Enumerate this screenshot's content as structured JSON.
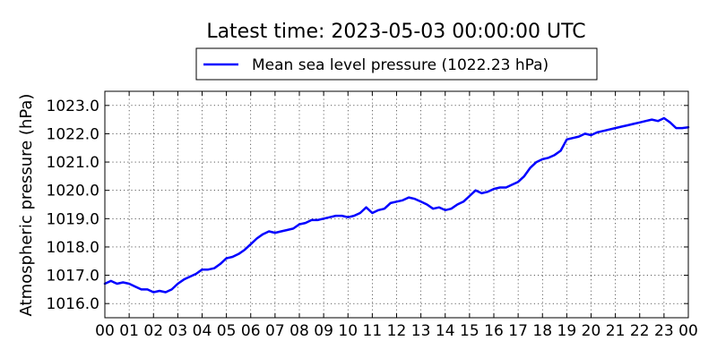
{
  "chart_data": {
    "type": "line",
    "title": "Latest time: 2023-05-03 00:00:00 UTC",
    "xlabel": "",
    "ylabel": "Atmospheric pressure (hPa)",
    "x_tick_labels": [
      "00",
      "01",
      "02",
      "03",
      "04",
      "05",
      "06",
      "07",
      "08",
      "09",
      "10",
      "11",
      "12",
      "13",
      "14",
      "15",
      "16",
      "17",
      "18",
      "19",
      "20",
      "21",
      "22",
      "23",
      "00"
    ],
    "xlim": [
      0,
      24
    ],
    "ylim": [
      1015.5,
      1023.5
    ],
    "y_ticks": [
      "1016.0",
      "1017.0",
      "1018.0",
      "1019.0",
      "1020.0",
      "1021.0",
      "1022.0",
      "1023.0"
    ],
    "grid": true,
    "legend_position": "top-center, above plot",
    "series": [
      {
        "name": "Mean sea level pressure (1022.23 hPa)",
        "color": "#0000ff",
        "x": [
          0,
          0.25,
          0.5,
          0.75,
          1,
          1.25,
          1.5,
          1.75,
          2,
          2.25,
          2.5,
          2.75,
          3,
          3.25,
          3.5,
          3.75,
          4,
          4.25,
          4.5,
          4.75,
          5,
          5.25,
          5.5,
          5.75,
          6,
          6.25,
          6.5,
          6.75,
          7,
          7.25,
          7.5,
          7.75,
          8,
          8.25,
          8.5,
          8.75,
          9,
          9.25,
          9.5,
          9.75,
          10,
          10.25,
          10.5,
          10.75,
          11,
          11.25,
          11.5,
          11.75,
          12,
          12.25,
          12.5,
          12.75,
          13,
          13.25,
          13.5,
          13.75,
          14,
          14.25,
          14.5,
          14.75,
          15,
          15.25,
          15.5,
          15.75,
          16,
          16.25,
          16.5,
          16.75,
          17,
          17.25,
          17.5,
          17.75,
          18,
          18.25,
          18.5,
          18.75,
          19,
          19.25,
          19.5,
          19.75,
          20,
          20.25,
          20.5,
          20.75,
          21,
          21.25,
          21.5,
          21.75,
          22,
          22.25,
          22.5,
          22.75,
          23,
          23.25,
          23.5,
          23.75,
          24
        ],
        "values": [
          1016.7,
          1016.8,
          1016.7,
          1016.75,
          1016.7,
          1016.6,
          1016.5,
          1016.5,
          1016.4,
          1016.45,
          1016.4,
          1016.5,
          1016.7,
          1016.85,
          1016.95,
          1017.05,
          1017.2,
          1017.2,
          1017.25,
          1017.4,
          1017.6,
          1017.65,
          1017.75,
          1017.9,
          1018.1,
          1018.3,
          1018.45,
          1018.55,
          1018.5,
          1018.55,
          1018.6,
          1018.65,
          1018.8,
          1018.85,
          1018.95,
          1018.95,
          1019.0,
          1019.05,
          1019.1,
          1019.1,
          1019.05,
          1019.1,
          1019.2,
          1019.4,
          1019.2,
          1019.3,
          1019.35,
          1019.55,
          1019.6,
          1019.65,
          1019.75,
          1019.7,
          1019.6,
          1019.5,
          1019.35,
          1019.4,
          1019.3,
          1019.35,
          1019.5,
          1019.6,
          1019.8,
          1020.0,
          1019.9,
          1019.95,
          1020.05,
          1020.1,
          1020.1,
          1020.2,
          1020.3,
          1020.5,
          1020.8,
          1021.0,
          1021.1,
          1021.15,
          1021.25,
          1021.4,
          1021.8,
          1021.85,
          1021.9,
          1022.0,
          1021.95,
          1022.05,
          1022.1,
          1022.15,
          1022.2,
          1022.25,
          1022.3,
          1022.35,
          1022.4,
          1022.45,
          1022.5,
          1022.45,
          1022.55,
          1022.4,
          1022.2,
          1022.2,
          1022.23
        ]
      }
    ]
  }
}
